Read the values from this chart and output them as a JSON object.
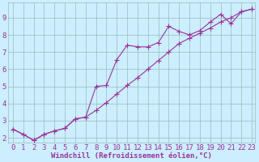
{
  "background_color": "#cceeff",
  "grid_color": "#99bbbb",
  "line_color": "#993399",
  "marker_color": "#993399",
  "xlabel": "Windchill (Refroidissement éolien,°C)",
  "xlabel_color": "#993399",
  "tick_color": "#993399",
  "xlim": [
    -0.5,
    23.3
  ],
  "ylim": [
    1.7,
    9.9
  ],
  "yticks": [
    2,
    3,
    4,
    5,
    6,
    7,
    8,
    9
  ],
  "xticks": [
    0,
    1,
    2,
    3,
    4,
    5,
    6,
    7,
    8,
    9,
    10,
    11,
    12,
    13,
    14,
    15,
    16,
    17,
    18,
    19,
    20,
    21,
    22,
    23
  ],
  "line1_x": [
    0,
    1,
    2,
    3,
    4,
    5,
    6,
    7,
    8,
    9,
    10,
    11,
    12,
    13,
    14,
    15,
    16,
    17,
    18,
    19,
    20,
    21,
    22,
    23
  ],
  "line1_y": [
    2.5,
    2.2,
    1.85,
    2.2,
    2.4,
    2.55,
    3.1,
    3.2,
    5.0,
    5.05,
    6.55,
    7.4,
    7.3,
    7.3,
    7.55,
    8.5,
    8.2,
    8.0,
    8.25,
    8.75,
    9.2,
    8.65,
    9.35,
    9.5
  ],
  "line2_x": [
    0,
    1,
    2,
    3,
    4,
    5,
    6,
    7,
    8,
    9,
    10,
    11,
    12,
    13,
    14,
    15,
    16,
    17,
    18,
    19,
    20,
    21,
    22,
    23
  ],
  "line2_y": [
    2.5,
    2.2,
    1.85,
    2.2,
    2.4,
    2.55,
    3.1,
    3.2,
    3.6,
    4.05,
    4.55,
    5.05,
    5.5,
    6.0,
    6.5,
    7.0,
    7.5,
    7.8,
    8.1,
    8.4,
    8.75,
    9.0,
    9.35,
    9.5
  ],
  "font_family": "monospace",
  "xlabel_fontsize": 6.5,
  "tick_fontsize": 6.5,
  "linewidth": 0.8,
  "markersize": 2.2
}
